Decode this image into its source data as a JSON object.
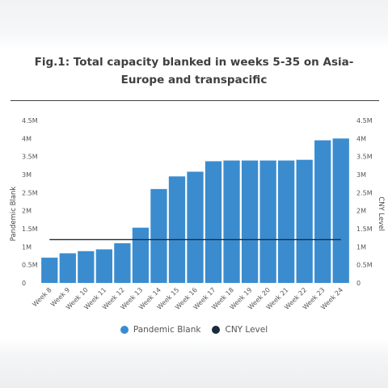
{
  "chart_data": {
    "type": "bar",
    "title": "Fig.1: Total capacity blanked in weeks 5-35 on Asia-Europe and transpacific",
    "categories": [
      "Week 8",
      "Week 9",
      "Week 10",
      "Week 11",
      "Week 12",
      "Week 13",
      "Week 14",
      "Week 15",
      "Week 16",
      "Week 17",
      "Week 18",
      "Week 19",
      "Week 20",
      "Week 21",
      "Week 22",
      "Week 23",
      "Week 24"
    ],
    "series": [
      {
        "name": "Pandemic Blank",
        "type": "bar",
        "color": "#3a8ccf",
        "values": [
          700000,
          820000,
          880000,
          930000,
          1100000,
          1530000,
          2600000,
          2950000,
          3080000,
          3370000,
          3390000,
          3390000,
          3390000,
          3390000,
          3410000,
          3950000,
          4000000
        ]
      },
      {
        "name": "CNY Level",
        "type": "line",
        "color": "#1a2b3c",
        "value": 1200000
      }
    ],
    "ylabel_left": "Pandemic Blank",
    "ylabel_right": "CNY Level",
    "ylim": [
      0,
      4500000
    ],
    "yticks": [
      "0",
      "0.5M",
      "1M",
      "1.5M",
      "2M",
      "2.5M",
      "3M",
      "3.5M",
      "4M",
      "4.5M"
    ],
    "legend_position": "bottom",
    "grid": false
  }
}
